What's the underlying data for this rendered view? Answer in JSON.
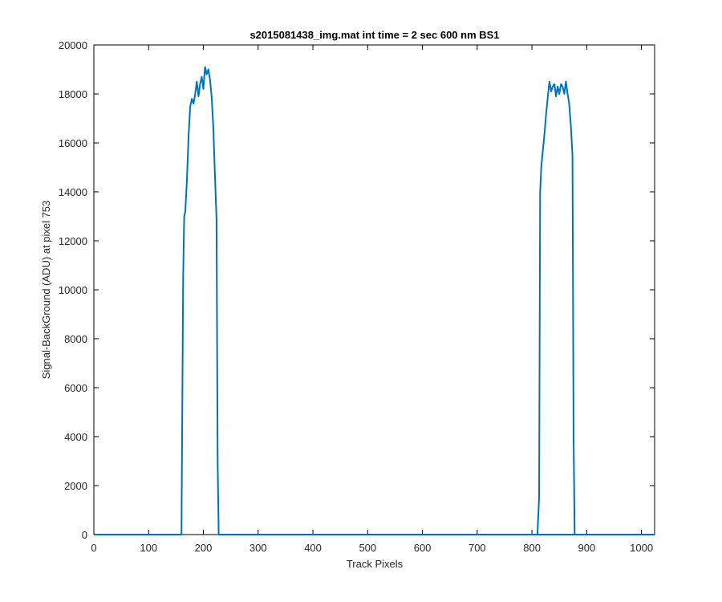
{
  "chart_data": {
    "type": "line",
    "title": "s2015081438_img.mat int time = 2 sec  600 nm BS1",
    "xlabel": "Track Pixels",
    "ylabel": "Signal-BackGround (ADU) at pixel 753",
    "xlim": [
      0,
      1024
    ],
    "ylim": [
      0,
      20000
    ],
    "xticks": [
      0,
      100,
      200,
      300,
      400,
      500,
      600,
      700,
      800,
      900,
      1000
    ],
    "yticks": [
      0,
      2000,
      4000,
      6000,
      8000,
      10000,
      12000,
      14000,
      16000,
      18000,
      20000
    ],
    "grid": false,
    "legend": "none",
    "series": [
      {
        "color": "#0072BD",
        "x": [
          0,
          160,
          163,
          165,
          167,
          170,
          173,
          176,
          179,
          182,
          185,
          188,
          191,
          194,
          197,
          200,
          203,
          206,
          209,
          212,
          215,
          218,
          221,
          224,
          226,
          228,
          230,
          1024
        ],
        "y": [
          0,
          0,
          10500,
          13000,
          13200,
          14500,
          16300,
          17500,
          17800,
          17600,
          18000,
          18500,
          17900,
          18400,
          18700,
          18200,
          19100,
          18800,
          19000,
          18600,
          17900,
          16700,
          14700,
          12900,
          3000,
          0,
          0,
          0
        ]
      },
      {
        "color": "#0072BD",
        "x": [
          810,
          813,
          815,
          817,
          820,
          823,
          826,
          829,
          832,
          835,
          838,
          841,
          844,
          847,
          850,
          853,
          856,
          859,
          862,
          865,
          868,
          871,
          874,
          876,
          878,
          880
        ],
        "y": [
          0,
          1500,
          14000,
          15000,
          15700,
          16400,
          17200,
          17900,
          18500,
          18100,
          18300,
          18400,
          17900,
          18300,
          18000,
          18400,
          18300,
          18000,
          18500,
          18000,
          17600,
          16700,
          15500,
          4000,
          0,
          0
        ]
      }
    ]
  }
}
